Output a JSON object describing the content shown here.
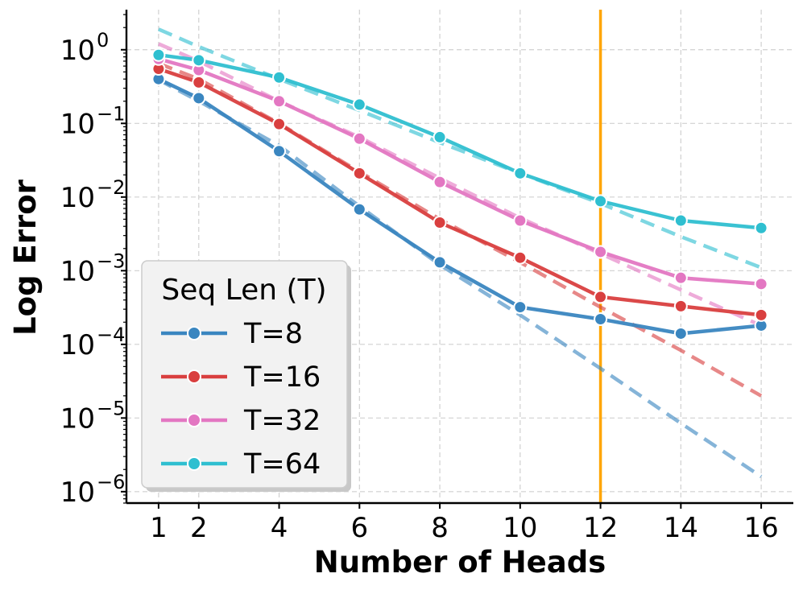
{
  "chart_data": {
    "type": "line",
    "title": "",
    "xlabel": "Number of Heads",
    "ylabel": "Log Error",
    "yscale": "log",
    "x": [
      1,
      2,
      4,
      6,
      8,
      10,
      12,
      14,
      16
    ],
    "x_ticks": [
      1,
      2,
      4,
      6,
      8,
      10,
      12,
      14,
      16
    ],
    "x_tick_labels": [
      "1",
      "2",
      "4",
      "6",
      "8",
      "10",
      "12",
      "14",
      "16"
    ],
    "xlim": [
      0.2,
      16.8
    ],
    "ylim": [
      7e-07,
      3.5
    ],
    "y_ticks": [
      {
        "value": 1,
        "base": "10",
        "exp": "0"
      },
      {
        "value": 0.1,
        "base": "10",
        "exp": "−1"
      },
      {
        "value": 0.01,
        "base": "10",
        "exp": "−2"
      },
      {
        "value": 0.001,
        "base": "10",
        "exp": "−3"
      },
      {
        "value": 0.0001,
        "base": "10",
        "exp": "−4"
      },
      {
        "value": 1e-05,
        "base": "10",
        "exp": "−5"
      },
      {
        "value": 1e-06,
        "base": "10",
        "exp": "−6"
      }
    ],
    "grid": true,
    "vline": {
      "x": 12,
      "color": "#ffa500"
    },
    "legend": {
      "title": "Seq Len (T)",
      "location": "lower-left"
    },
    "series": [
      {
        "name": "T=8",
        "color": "#3a86c0",
        "values": [
          0.4,
          0.22,
          0.042,
          0.0068,
          0.0013,
          0.00032,
          0.00022,
          0.00014,
          0.00018
        ],
        "fit": [
          0.39,
          0.2,
          0.05,
          0.0075,
          0.0012,
          0.00025,
          4.7e-05,
          8.5e-06,
          1.6e-06
        ]
      },
      {
        "name": "T=16",
        "color": "#d93f3f",
        "values": [
          0.55,
          0.36,
          0.098,
          0.021,
          0.0045,
          0.0015,
          0.00044,
          0.00033,
          0.00025
        ],
        "fit": [
          0.65,
          0.4,
          0.1,
          0.022,
          0.005,
          0.0013,
          0.00032,
          8.3e-05,
          2e-05
        ]
      },
      {
        "name": "T=32",
        "color": "#e377c2",
        "values": [
          0.75,
          0.53,
          0.2,
          0.062,
          0.016,
          0.0048,
          0.0018,
          0.0008,
          0.00066
        ],
        "fit": [
          1.2,
          0.7,
          0.2,
          0.065,
          0.018,
          0.0052,
          0.0017,
          0.00055,
          0.00018
        ]
      },
      {
        "name": "T=64",
        "color": "#2fbfd0",
        "values": [
          0.85,
          0.72,
          0.42,
          0.18,
          0.065,
          0.021,
          0.0088,
          0.0048,
          0.0038
        ],
        "fit": [
          1.9,
          1.1,
          0.4,
          0.15,
          0.055,
          0.021,
          0.0082,
          0.0029,
          0.0011
        ]
      }
    ]
  }
}
